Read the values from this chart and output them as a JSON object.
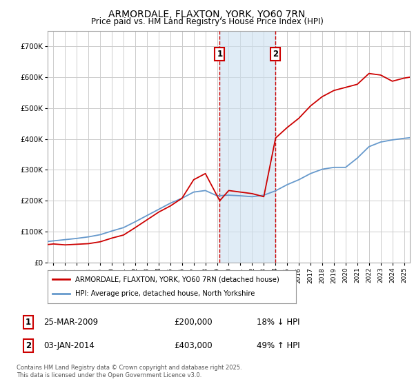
{
  "title": "ARMORDALE, FLAXTON, YORK, YO60 7RN",
  "subtitle": "Price paid vs. HM Land Registry's House Price Index (HPI)",
  "legend_line1": "ARMORDALE, FLAXTON, YORK, YO60 7RN (detached house)",
  "legend_line2": "HPI: Average price, detached house, North Yorkshire",
  "annotation1_label": "1",
  "annotation1_date": "25-MAR-2009",
  "annotation1_price": 200000,
  "annotation1_hpi": "18% ↓ HPI",
  "annotation2_label": "2",
  "annotation2_date": "03-JAN-2014",
  "annotation2_price": 403000,
  "annotation2_hpi": "49% ↑ HPI",
  "footer": "Contains HM Land Registry data © Crown copyright and database right 2025.\nThis data is licensed under the Open Government Licence v3.0.",
  "red_line_color": "#cc0000",
  "blue_line_color": "#6699cc",
  "vline_color": "#cc0000",
  "shading_color": "#cce0f0",
  "background_color": "#ffffff",
  "grid_color": "#cccccc",
  "ylim": [
    0,
    750000
  ],
  "yticks": [
    0,
    100000,
    200000,
    300000,
    400000,
    500000,
    600000,
    700000
  ],
  "xlim_start": 1994.5,
  "xlim_end": 2025.5,
  "sale1_x": 2009.23,
  "sale2_x": 2014.01,
  "hpi_years": [
    1994.5,
    1995,
    1996,
    1997,
    1998,
    1999,
    2000,
    2001,
    2002,
    2003,
    2004,
    2005,
    2006,
    2007,
    2008,
    2009,
    2010,
    2011,
    2012,
    2013,
    2014,
    2015,
    2016,
    2017,
    2018,
    2019,
    2020,
    2021,
    2022,
    2023,
    2024,
    2025,
    2025.5
  ],
  "hpi_values": [
    68000,
    70000,
    74000,
    78000,
    83000,
    90000,
    102000,
    113000,
    132000,
    152000,
    172000,
    192000,
    208000,
    228000,
    233000,
    216000,
    218000,
    216000,
    213000,
    218000,
    232000,
    252000,
    268000,
    288000,
    302000,
    308000,
    308000,
    338000,
    375000,
    390000,
    397000,
    402000,
    404000
  ],
  "red_years": [
    1994.5,
    1995,
    1996,
    1997,
    1998,
    1999,
    2000,
    2001,
    2002,
    2003,
    2004,
    2005,
    2006,
    2007,
    2008,
    2009.23,
    2010,
    2011,
    2012,
    2013,
    2014.01,
    2015,
    2016,
    2017,
    2018,
    2019,
    2020,
    2021,
    2022,
    2023,
    2024,
    2025,
    2025.5
  ],
  "red_values": [
    58000,
    60000,
    57000,
    59000,
    61000,
    67000,
    79000,
    89000,
    113000,
    138000,
    163000,
    183000,
    208000,
    268000,
    288000,
    200000,
    233000,
    228000,
    223000,
    213000,
    403000,
    437000,
    467000,
    507000,
    537000,
    557000,
    567000,
    577000,
    612000,
    607000,
    587000,
    597000,
    600000
  ]
}
